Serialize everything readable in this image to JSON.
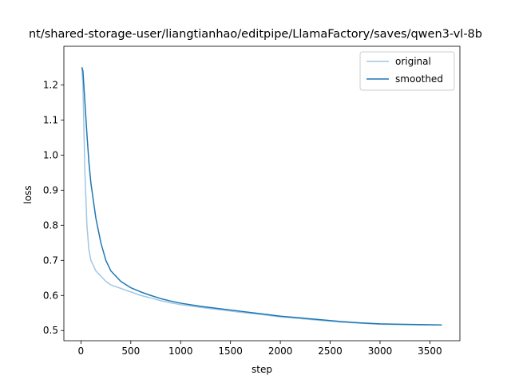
{
  "chart_data": {
    "type": "line",
    "title": "nt/shared-storage-user/liangtianhao/editpipe/LlamaFactory/saves/qwen3-vl-8b",
    "x_label": "step",
    "y_label": "loss",
    "x": [
      10,
      20,
      40,
      60,
      80,
      100,
      150,
      200,
      250,
      300,
      400,
      500,
      600,
      700,
      800,
      900,
      1000,
      1200,
      1400,
      1600,
      1800,
      2000,
      2200,
      2400,
      2600,
      2800,
      3000,
      3200,
      3400,
      3620
    ],
    "series": [
      {
        "name": "original",
        "color": "#a0c7e3",
        "values": [
          1.25,
          1.2,
          0.95,
          0.8,
          0.73,
          0.7,
          0.67,
          0.655,
          0.64,
          0.63,
          0.62,
          0.61,
          0.6,
          0.593,
          0.585,
          0.579,
          0.574,
          0.566,
          0.559,
          0.552,
          0.546,
          0.539,
          0.534,
          0.529,
          0.524,
          0.521,
          0.518,
          0.517,
          0.516,
          0.516
        ]
      },
      {
        "name": "smoothed",
        "color": "#1f77b4",
        "values": [
          1.25,
          1.24,
          1.15,
          1.06,
          0.98,
          0.92,
          0.82,
          0.75,
          0.7,
          0.67,
          0.64,
          0.622,
          0.61,
          0.6,
          0.591,
          0.584,
          0.578,
          0.569,
          0.562,
          0.555,
          0.548,
          0.541,
          0.536,
          0.531,
          0.526,
          0.522,
          0.519,
          0.518,
          0.517,
          0.516
        ]
      }
    ],
    "xlim": [
      -171,
      3801
    ],
    "ylim": [
      0.471,
      1.31
    ],
    "xticks": [
      0,
      500,
      1000,
      1500,
      2000,
      2500,
      3000,
      3500
    ],
    "yticks": [
      0.5,
      0.6,
      0.7,
      0.8,
      0.9,
      {
        "value": 1,
        "label": "1.0"
      },
      1.1,
      1.2
    ],
    "grid": false,
    "legend": "upper right"
  }
}
